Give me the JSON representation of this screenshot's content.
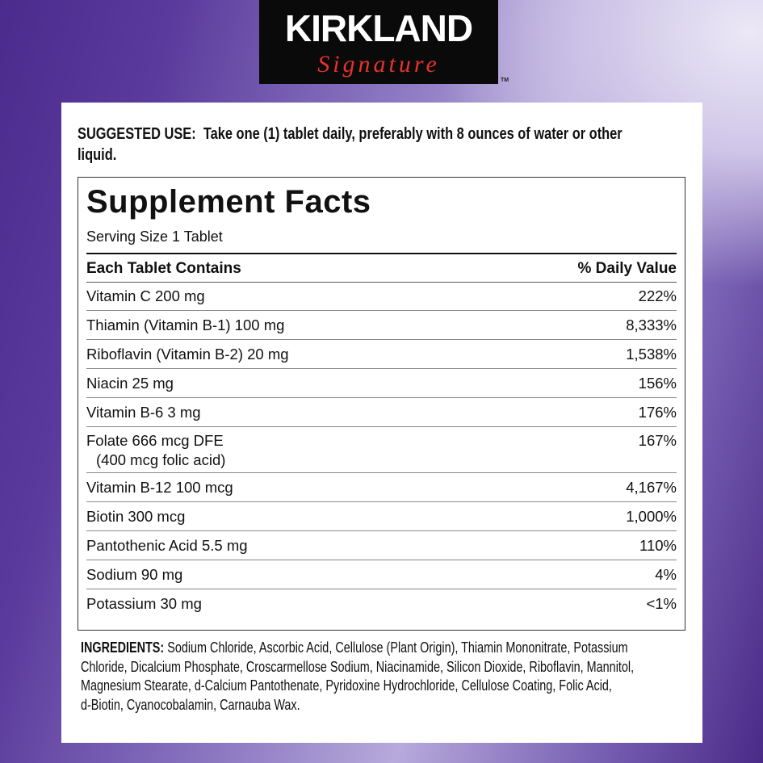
{
  "logo": {
    "brand": "KIRKLAND",
    "sub": "Signature",
    "tm": "TM",
    "colors": {
      "box": "#0a0a0a",
      "brand": "#ffffff",
      "sub": "#e8322b"
    }
  },
  "suggested_use": {
    "label": "SUGGESTED USE:",
    "lines": [
      "Take one (1) tablet daily, preferably with 8 ounces of water or other",
      "liquid."
    ]
  },
  "facts": {
    "title": "Supplement Facts",
    "serving": "Serving Size 1 Tablet",
    "col_left": "Each Tablet Contains",
    "col_right": "% Daily Value",
    "rows": [
      {
        "name": "Vitamin C 200 mg",
        "dv": "222%"
      },
      {
        "name": "Thiamin (Vitamin B-1) 100 mg",
        "dv": "8,333%"
      },
      {
        "name": "Riboflavin (Vitamin B-2) 20 mg",
        "dv": "1,538%"
      },
      {
        "name": "Niacin 25 mg",
        "dv": "156%"
      },
      {
        "name": "Vitamin B-6 3 mg",
        "dv": "176%"
      },
      {
        "name": "Folate 666 mcg DFE",
        "name2": "(400 mcg folic acid)",
        "dv": "167%"
      },
      {
        "name": "Vitamin B-12 100 mcg",
        "dv": "4,167%"
      },
      {
        "name": "Biotin 300 mcg",
        "dv": "1,000%"
      },
      {
        "name": "Pantothenic Acid 5.5 mg",
        "dv": "110%"
      },
      {
        "name": "Sodium 90 mg",
        "dv": "4%"
      },
      {
        "name": "Potassium 30 mg",
        "dv": "<1%"
      }
    ]
  },
  "ingredients": {
    "label": "INGREDIENTS:",
    "lines": [
      "Sodium Chloride, Ascorbic Acid, Cellulose (Plant Origin), Thiamin Mononitrate, Potassium",
      "Chloride, Dicalcium Phosphate, Croscarmellose Sodium, Niacinamide, Silicon Dioxide, Riboflavin, Mannitol,",
      "Magnesium Stearate, d-Calcium Pantothenate, Pyridoxine Hydrochloride, Cellulose Coating, Folic Acid,",
      "d-Biotin, Cyanocobalamin, Carnauba Wax."
    ]
  }
}
